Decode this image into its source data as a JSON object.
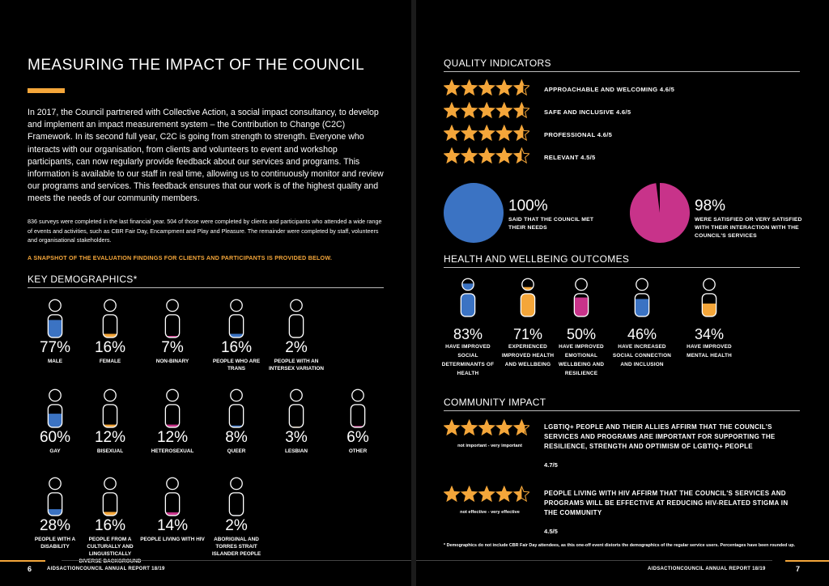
{
  "left": {
    "title": "MEASURING THE IMPACT OF THE COUNCIL",
    "intro": "In 2017, the Council partnered with Collective Action, a social impact consultancy, to develop and implement an impact measurement system – the Contribution to Change (C2C) Framework. In its second full year, C2C is going from strength to strength. Everyone who interacts with our organisation, from clients and volunteers to event and workshop participants, can now regularly provide feedback about our services and programs. This information is available to our staff in real time, allowing us to continuously monitor and review our programs and services. This feedback ensures that our work is of the highest quality and meets the needs of our community members.",
    "surveys": "836 surveys were completed in the last financial year. 504 of those were completed by clients and participants who attended a wide range of events and activities, such as CBR Fair Day, Encampment and Play and Pleasure. The remainder were completed by staff, volunteers and organisational stakeholders.",
    "snapshot": "A SNAPSHOT OF THE EVALUATION FINDINGS FOR CLIENTS AND PARTICIPANTS IS PROVIDED BELOW.",
    "demographics_title": "KEY DEMOGRAPHICS*",
    "demographics": [
      {
        "pct": "77%",
        "label": "MALE",
        "fill": 0.77,
        "color": "#3b73c3"
      },
      {
        "pct": "16%",
        "label": "FEMALE",
        "fill": 0.16,
        "color": "#f4a63a"
      },
      {
        "pct": "7%",
        "label": "NON-BINARY",
        "fill": 0.07,
        "color": "#c8338a"
      },
      {
        "pct": "16%",
        "label": "PEOPLE WHO ARE TRANS",
        "fill": 0.16,
        "color": "#3b73c3"
      },
      {
        "pct": "2%",
        "label": "PEOPLE WITH AN INTERSEX VARIATION",
        "fill": 0.02,
        "color": "#f4a63a"
      },
      {
        "pct": "60%",
        "label": "GAY",
        "fill": 0.6,
        "color": "#3b73c3"
      },
      {
        "pct": "12%",
        "label": "BISEXUAL",
        "fill": 0.12,
        "color": "#f4a63a"
      },
      {
        "pct": "12%",
        "label": "HETEROSEXUAL",
        "fill": 0.12,
        "color": "#c8338a"
      },
      {
        "pct": "8%",
        "label": "QUEER",
        "fill": 0.08,
        "color": "#3b73c3"
      },
      {
        "pct": "3%",
        "label": "LESBIAN",
        "fill": 0.03,
        "color": "#f4a63a"
      },
      {
        "pct": "6%",
        "label": "OTHER",
        "fill": 0.06,
        "color": "#c8338a"
      },
      {
        "pct": "28%",
        "label": "PEOPLE WITH A DISABILITY",
        "fill": 0.28,
        "color": "#3b73c3"
      },
      {
        "pct": "16%",
        "label": "PEOPLE FROM A CULTURALLY AND LINGUISTICALLY DIVERSE BACKGROUND",
        "fill": 0.16,
        "color": "#f4a63a"
      },
      {
        "pct": "14%",
        "label": "PEOPLE LIVING WITH HIV",
        "fill": 0.14,
        "color": "#c8338a"
      },
      {
        "pct": "2%",
        "label": "ABORIGINAL AND TORRES STRAIT ISLANDER PEOPLE",
        "fill": 0.02,
        "color": "#3b73c3"
      }
    ],
    "page_num": "6",
    "footer": "AIDSACTIONCOUNCIL ANNUAL REPORT 18/19"
  },
  "right": {
    "quality_title": "QUALITY INDICATORS",
    "quality": [
      {
        "label": "APPROACHABLE AND WELCOMING 4.6/5",
        "rating": 4.6
      },
      {
        "label": "SAFE AND INCLUSIVE 4.6/5",
        "rating": 4.6
      },
      {
        "label": "PROFESSIONAL 4.6/5",
        "rating": 4.6
      },
      {
        "label": "RELEVANT 4.5/5",
        "rating": 4.5
      }
    ],
    "pies": [
      {
        "pct": "100%",
        "label": "SAID THAT THE COUNCIL MET THEIR NEEDS",
        "value": 1.0,
        "color": "#3b73c3"
      },
      {
        "pct": "98%",
        "label": "WERE SATISFIED OR VERY SATISFIED WITH THEIR INTERACTION WITH THE COUNCIL'S SERVICES",
        "value": 0.98,
        "color": "#c8338a"
      }
    ],
    "health_title": "HEALTH AND WELLBEING OUTCOMES",
    "health": [
      {
        "pct": "83%",
        "label": "HAVE IMPROVED SOCIAL DETERMINANTS OF HEALTH",
        "fill": 0.83,
        "color": "#3b73c3"
      },
      {
        "pct": "71%",
        "label": "EXPERIENCED IMPROVED HEALTH AND WELLBEING",
        "fill": 0.71,
        "color": "#f4a63a"
      },
      {
        "pct": "50%",
        "label": "HAVE IMPROVED EMOTIONAL WELLBEING AND RESILIENCE",
        "fill": 0.5,
        "color": "#c8338a"
      },
      {
        "pct": "46%",
        "label": "HAVE INCREASED SOCIAL CONNECTION AND INCLUSION",
        "fill": 0.46,
        "color": "#3b73c3"
      },
      {
        "pct": "34%",
        "label": "HAVE IMPROVED MENTAL HEALTH",
        "fill": 0.34,
        "color": "#f4a63a"
      }
    ],
    "community_title": "COMMUNITY IMPACT",
    "community": [
      {
        "rating": 4.7,
        "scale": "not important - very important",
        "text": "LGBTIQ+ PEOPLE AND THEIR ALLIES AFFIRM THAT THE COUNCIL'S SERVICES AND PROGRAMS ARE IMPORTANT FOR SUPPORTING THE RESILIENCE, STRENGTH AND OPTIMISM OF LGBTIQ+ PEOPLE",
        "score": "4.7/5"
      },
      {
        "rating": 4.5,
        "scale": "not effective - very effective",
        "text": "PEOPLE LIVING WITH HIV AFFIRM THAT THE COUNCIL'S SERVICES AND PROGRAMS WILL BE EFFECTIVE AT REDUCING HIV-RELATED STIGMA IN THE COMMUNITY",
        "score": "4.5/5"
      }
    ],
    "footnote": "* Demographics do not include CBR Fair Day attendees, as this one-off event distorts the demographics of the regular service users. Percentages have been rounded up.",
    "page_num": "7",
    "footer": "AIDSACTIONCOUNCIL ANNUAL REPORT 18/19"
  },
  "colors": {
    "orange": "#f4a63a",
    "blue": "#3b73c3",
    "pink": "#c8338a"
  }
}
